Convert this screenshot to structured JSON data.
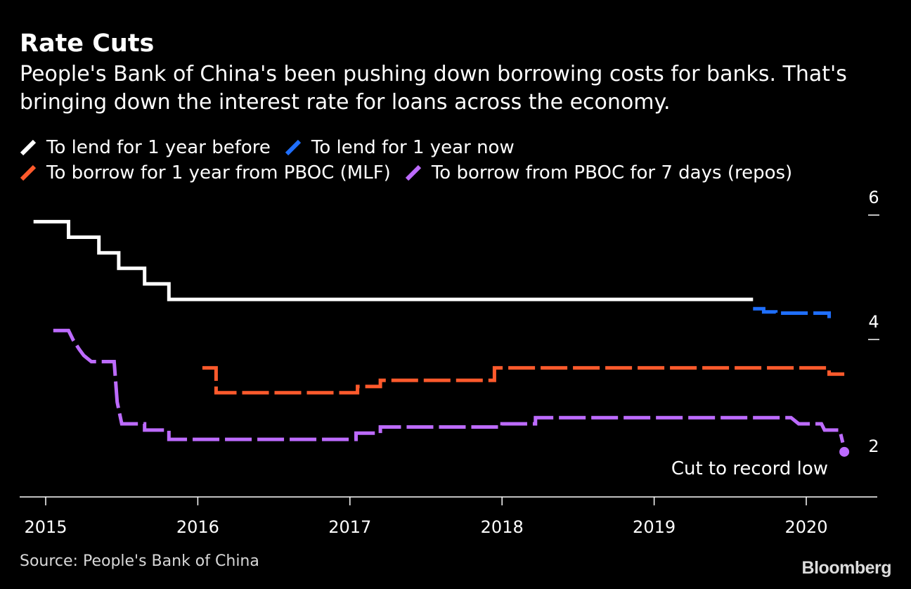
{
  "title": "Rate Cuts",
  "subtitle": "People's Bank of China's been pushing down borrowing costs for banks. That's bringing down the interest rate for loans across the economy.",
  "source": "Source: People's Bank of China",
  "brand": "Bloomberg",
  "chart_data": {
    "type": "line",
    "ylim": [
      1.2,
      6.2
    ],
    "y_ticks": [
      2,
      4,
      6
    ],
    "x_ticks": [
      "2015",
      "2016",
      "2017",
      "2018",
      "2019",
      "2020"
    ],
    "grid": false,
    "legend_position": "top",
    "annotation": {
      "text": "Cut to record low",
      "x": 2020.25,
      "y": 1.9
    },
    "series": [
      {
        "name": "To lend for 1 year before",
        "color": "#ffffff",
        "dashed": false,
        "points": [
          [
            2014.92,
            5.6
          ],
          [
            2015.15,
            5.6
          ],
          [
            2015.15,
            5.35
          ],
          [
            2015.35,
            5.35
          ],
          [
            2015.35,
            5.1
          ],
          [
            2015.48,
            5.1
          ],
          [
            2015.48,
            4.85
          ],
          [
            2015.65,
            4.85
          ],
          [
            2015.65,
            4.6
          ],
          [
            2015.81,
            4.6
          ],
          [
            2015.81,
            4.35
          ],
          [
            2019.65,
            4.35
          ]
        ]
      },
      {
        "name": "To lend for 1 year now",
        "color": "#1f6fff",
        "dashed": true,
        "points": [
          [
            2019.65,
            4.2
          ],
          [
            2019.72,
            4.2
          ],
          [
            2019.72,
            4.15
          ],
          [
            2019.8,
            4.15
          ],
          [
            2019.8,
            4.13
          ],
          [
            2020.15,
            4.13
          ],
          [
            2020.15,
            4.05
          ]
        ]
      },
      {
        "name": "To borrow for 1 year from PBOC (MLF)",
        "color": "#ff5a2c",
        "dashed": true,
        "points": [
          [
            2016.03,
            3.25
          ],
          [
            2016.12,
            3.25
          ],
          [
            2016.12,
            2.85
          ],
          [
            2017.05,
            2.85
          ],
          [
            2017.05,
            2.95
          ],
          [
            2017.2,
            2.95
          ],
          [
            2017.2,
            3.05
          ],
          [
            2017.95,
            3.05
          ],
          [
            2017.95,
            3.25
          ],
          [
            2020.15,
            3.25
          ],
          [
            2020.15,
            3.15
          ],
          [
            2020.25,
            3.15
          ]
        ]
      },
      {
        "name": "To borrow from PBOC for 7 days (repos)",
        "color": "#bd6bff",
        "dashed": true,
        "points": [
          [
            2015.05,
            3.85
          ],
          [
            2015.15,
            3.85
          ],
          [
            2015.18,
            3.7
          ],
          [
            2015.22,
            3.55
          ],
          [
            2015.25,
            3.45
          ],
          [
            2015.3,
            3.35
          ],
          [
            2015.45,
            3.35
          ],
          [
            2015.47,
            2.7
          ],
          [
            2015.5,
            2.35
          ],
          [
            2015.65,
            2.35
          ],
          [
            2015.65,
            2.25
          ],
          [
            2015.81,
            2.25
          ],
          [
            2015.81,
            2.1
          ],
          [
            2017.04,
            2.1
          ],
          [
            2017.04,
            2.2
          ],
          [
            2017.2,
            2.2
          ],
          [
            2017.2,
            2.3
          ],
          [
            2018.0,
            2.3
          ],
          [
            2018.0,
            2.35
          ],
          [
            2018.22,
            2.35
          ],
          [
            2018.22,
            2.45
          ],
          [
            2019.9,
            2.45
          ],
          [
            2019.95,
            2.35
          ],
          [
            2020.1,
            2.35
          ],
          [
            2020.12,
            2.25
          ],
          [
            2020.22,
            2.25
          ],
          [
            2020.24,
            2.05
          ]
        ]
      }
    ]
  }
}
